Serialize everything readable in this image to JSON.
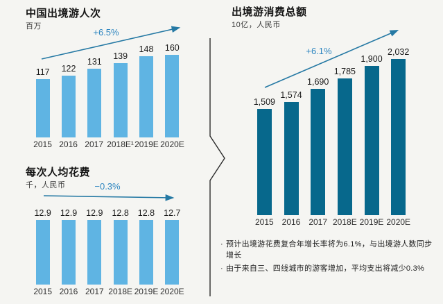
{
  "colors": {
    "background": "#F5F5F2",
    "light_blue_bar": "#5FB4E3",
    "dark_teal_bar": "#07688C",
    "trend_arrow": "#2579A4",
    "trend_label_text": "#2E86C0",
    "divider_line": "#2B2B2B"
  },
  "chart_data": [
    {
      "id": "china-outbound-visits",
      "type": "bar",
      "title": "中国出境游人次",
      "unit_label": "百万",
      "categories": [
        "2015",
        "2016",
        "2017",
        "2018E¹",
        "2019E",
        "2020E"
      ],
      "values": [
        117,
        122,
        131,
        139,
        148,
        160
      ],
      "value_labels": [
        "117",
        "122",
        "131",
        "139",
        "148",
        "160"
      ],
      "trend_label": "+6.5%",
      "trend_direction": "up",
      "bar_color": "#5FB4E3",
      "ylim": [
        0,
        170
      ],
      "grid": false,
      "legend": "none"
    },
    {
      "id": "spend-per-visit",
      "type": "bar",
      "title": "每次人均花费",
      "unit_label": "千，人民币",
      "categories": [
        "2015",
        "2016",
        "2017",
        "2018E",
        "2019E",
        "2020E"
      ],
      "values": [
        12.9,
        12.9,
        12.9,
        12.8,
        12.8,
        12.7
      ],
      "value_labels": [
        "12.9",
        "12.9",
        "12.9",
        "12.8",
        "12.8",
        "12.7"
      ],
      "trend_label": "−0.3%",
      "trend_direction": "flat",
      "bar_color": "#5FB4E3",
      "ylim": [
        0,
        14
      ],
      "grid": false,
      "legend": "none"
    },
    {
      "id": "total-outbound-spend",
      "type": "bar",
      "title": "出境游消费总额",
      "unit_label": "10亿，人民币",
      "categories": [
        "2015",
        "2016",
        "2017",
        "2018E",
        "2019E",
        "2020E"
      ],
      "values": [
        1509,
        1574,
        1690,
        1785,
        1900,
        2032
      ],
      "value_labels": [
        "1,509",
        "1,574",
        "1,690",
        "1,785",
        "1,900",
        "2,032"
      ],
      "trend_label": "+6.1%",
      "trend_direction": "up",
      "bar_color": "#07688C",
      "ylim": [
        0,
        2200
      ],
      "grid": false,
      "legend": "none"
    }
  ],
  "footnote_bullet": "·",
  "footnotes": [
    "预计出境游花费复合年增长率将为6.1%，与出境游人数同步增长",
    "由于来自三、四线城市的游客增加，平均支出将减少0.3%"
  ]
}
